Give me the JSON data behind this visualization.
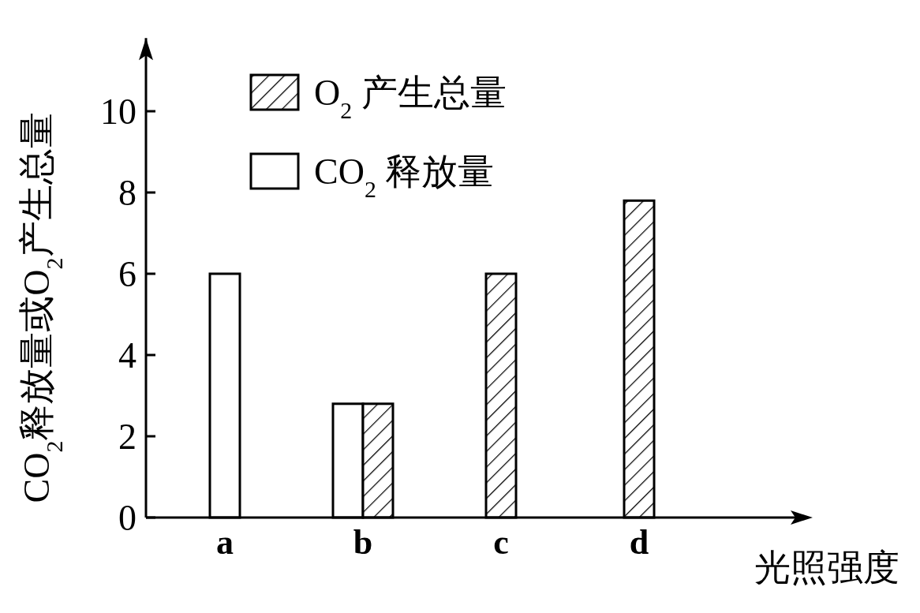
{
  "chart_data": {
    "type": "bar",
    "xlabel": "光照强度",
    "ylabel": "CO$_{2}$释放量或O$_{2}$产生总量",
    "categories": [
      "a",
      "b",
      "c",
      "d"
    ],
    "series": [
      {
        "name": "CO$_{2}$ 释放量",
        "color": "#ffffff",
        "values": [
          6,
          2.8,
          null,
          null
        ]
      },
      {
        "name": "O$_{2}$ 产生总量",
        "color": "#000000",
        "values": [
          null,
          2.8,
          6,
          7.8
        ]
      }
    ],
    "ylim": [
      0,
      11.8
    ],
    "yticks": [
      0,
      2,
      4,
      6,
      8,
      10
    ],
    "legend": "top left"
  }
}
